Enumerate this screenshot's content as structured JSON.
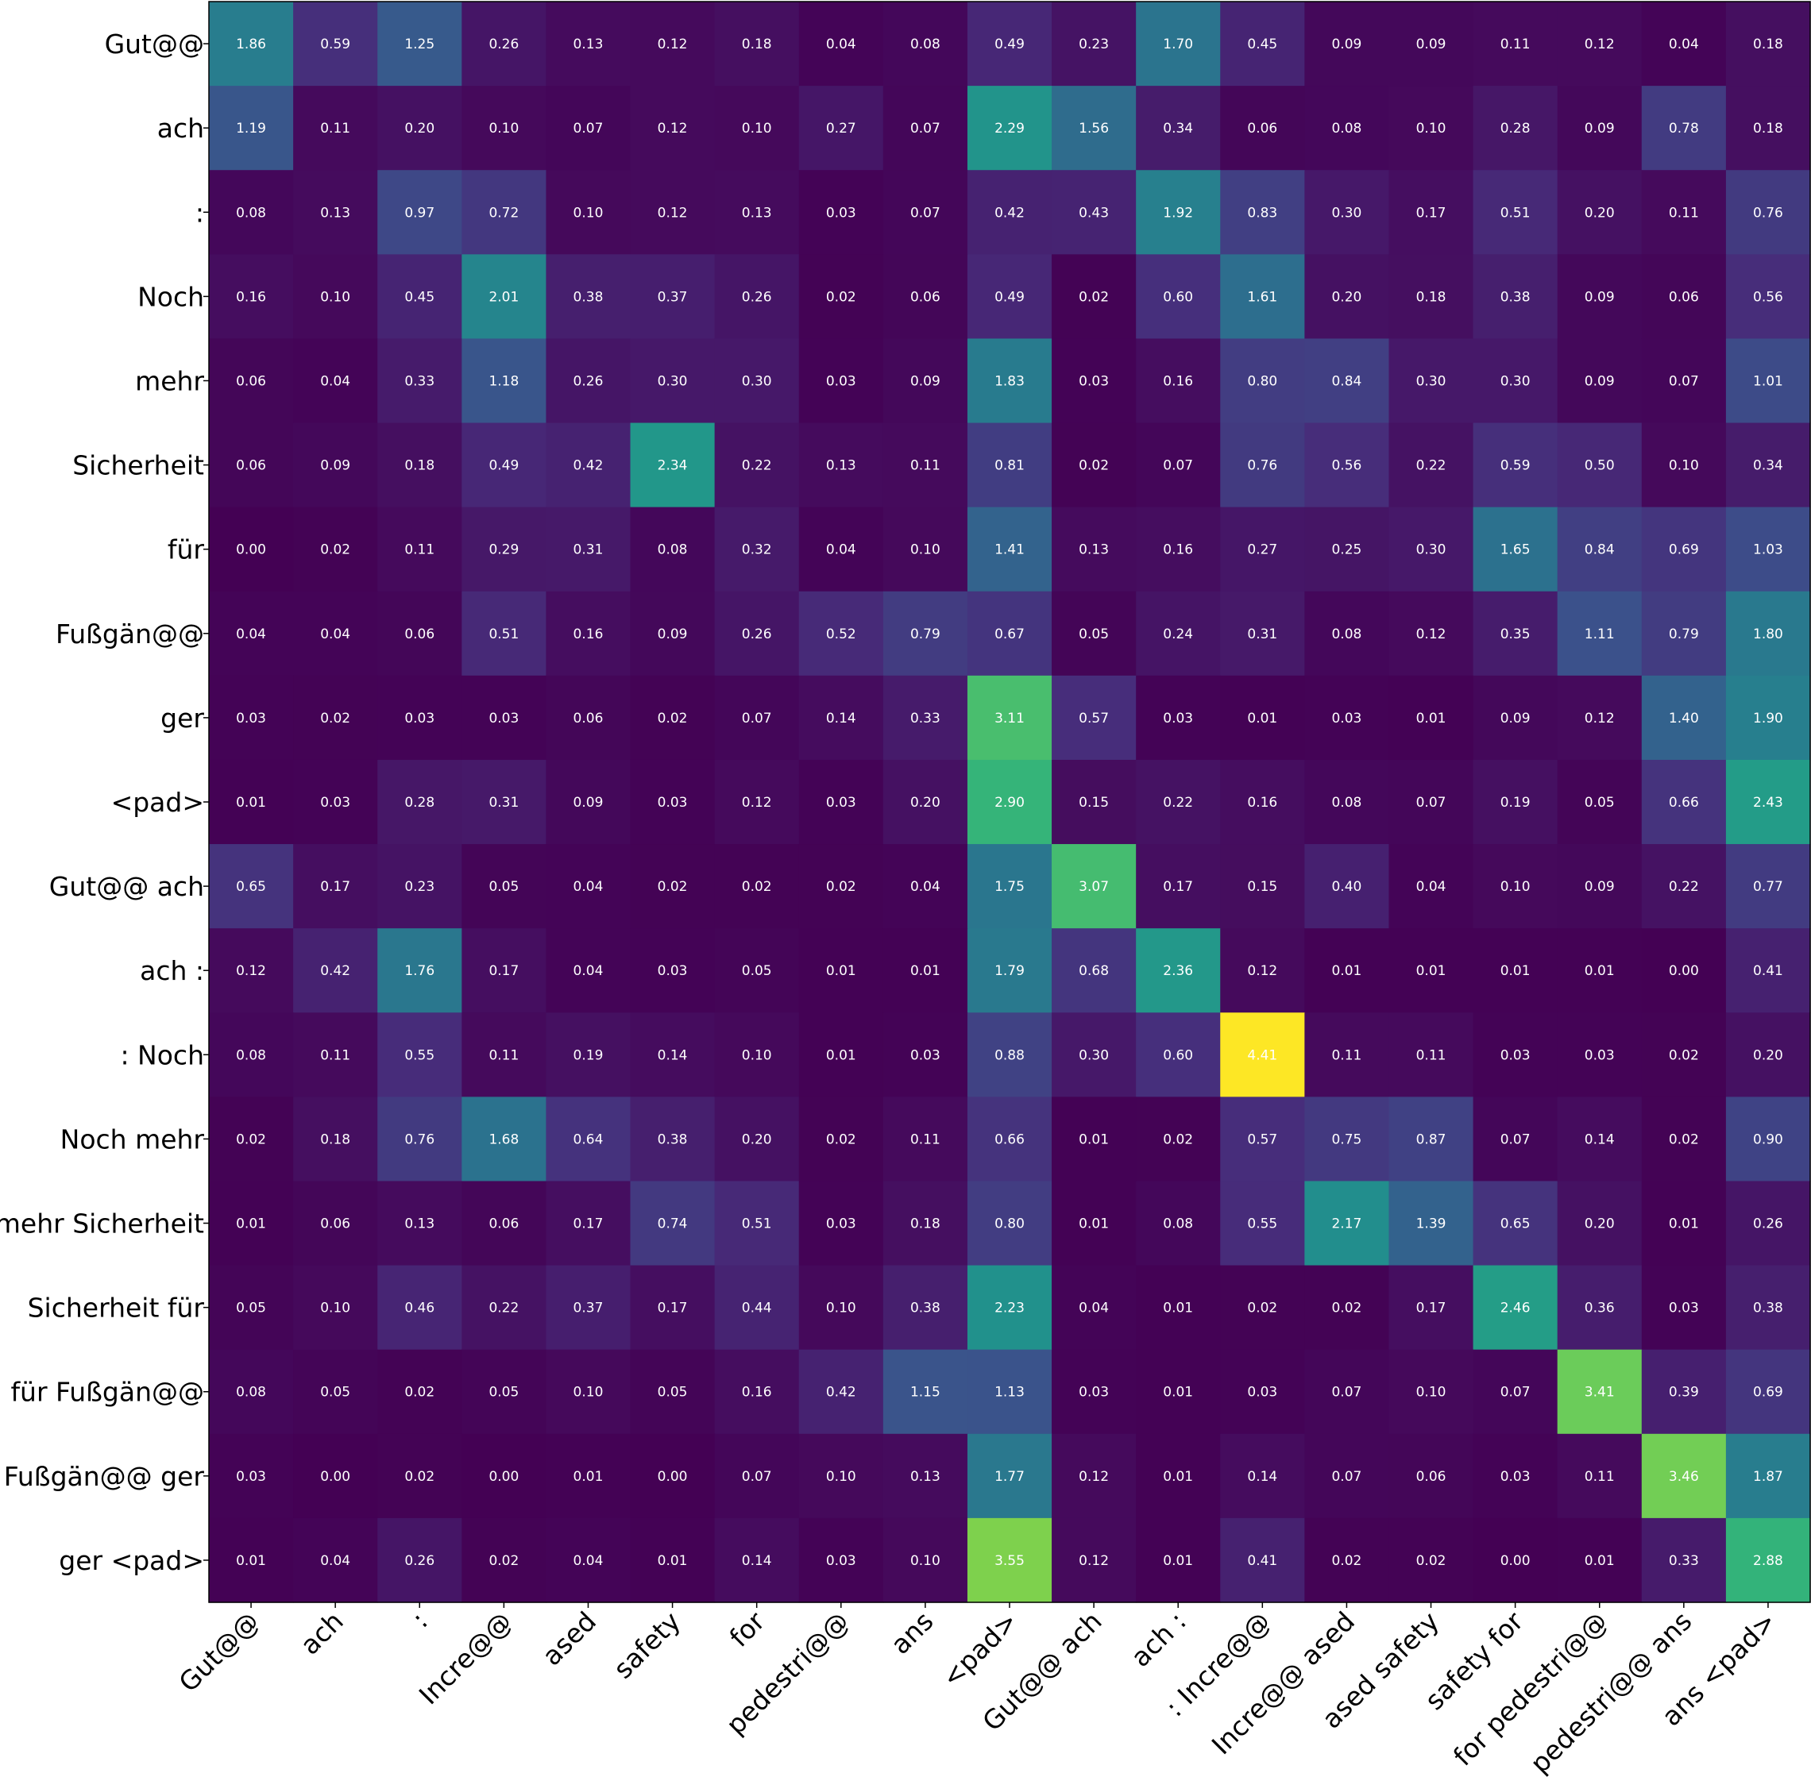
{
  "chart_data": {
    "type": "heatmap",
    "title": "",
    "colormap": "viridis",
    "vmin": 0.0,
    "vmax": 4.41,
    "y_labels": [
      "Gut@@",
      "ach",
      ":",
      "Noch",
      "mehr",
      "Sicherheit",
      "für",
      "Fußgän@@",
      "ger",
      "<pad>",
      "Gut@@ ach",
      "ach :",
      ": Noch",
      "Noch mehr",
      "mehr Sicherheit",
      "Sicherheit für",
      "für Fußgän@@",
      "Fußgän@@ ger",
      "ger <pad>"
    ],
    "x_labels": [
      "Gut@@",
      "ach",
      ":",
      "Incre@@",
      "ased",
      "safety",
      "for",
      "pedestri@@",
      "ans",
      "<pad>",
      "Gut@@ ach",
      "ach :",
      ": Incre@@",
      "Incre@@ ased",
      "ased safety",
      "safety for",
      "for pedestri@@",
      "pedestri@@ ans",
      "ans <pad>"
    ],
    "values": [
      [
        1.86,
        0.59,
        1.25,
        0.26,
        0.13,
        0.12,
        0.18,
        0.04,
        0.08,
        0.49,
        0.23,
        1.7,
        0.45,
        0.09,
        0.09,
        0.11,
        0.12,
        0.04,
        0.18
      ],
      [
        1.19,
        0.11,
        0.2,
        0.1,
        0.07,
        0.12,
        0.1,
        0.27,
        0.07,
        2.29,
        1.56,
        0.34,
        0.06,
        0.08,
        0.1,
        0.28,
        0.09,
        0.78,
        0.18
      ],
      [
        0.08,
        0.13,
        0.97,
        0.72,
        0.1,
        0.12,
        0.13,
        0.03,
        0.07,
        0.42,
        0.43,
        1.92,
        0.83,
        0.3,
        0.17,
        0.51,
        0.2,
        0.11,
        0.76
      ],
      [
        0.16,
        0.1,
        0.45,
        2.01,
        0.38,
        0.37,
        0.26,
        0.02,
        0.06,
        0.49,
        0.02,
        0.6,
        1.61,
        0.2,
        0.18,
        0.38,
        0.09,
        0.06,
        0.56
      ],
      [
        0.06,
        0.04,
        0.33,
        1.18,
        0.26,
        0.3,
        0.3,
        0.03,
        0.09,
        1.83,
        0.03,
        0.16,
        0.8,
        0.84,
        0.3,
        0.3,
        0.09,
        0.07,
        1.01
      ],
      [
        0.06,
        0.09,
        0.18,
        0.49,
        0.42,
        2.34,
        0.22,
        0.13,
        0.11,
        0.81,
        0.02,
        0.07,
        0.76,
        0.56,
        0.22,
        0.59,
        0.5,
        0.1,
        0.34
      ],
      [
        0.0,
        0.02,
        0.11,
        0.29,
        0.31,
        0.08,
        0.32,
        0.04,
        0.1,
        1.41,
        0.13,
        0.16,
        0.27,
        0.25,
        0.3,
        1.65,
        0.84,
        0.69,
        1.03
      ],
      [
        0.04,
        0.04,
        0.06,
        0.51,
        0.16,
        0.09,
        0.26,
        0.52,
        0.79,
        0.67,
        0.05,
        0.24,
        0.31,
        0.08,
        0.12,
        0.35,
        1.11,
        0.79,
        1.8
      ],
      [
        0.03,
        0.02,
        0.03,
        0.03,
        0.06,
        0.02,
        0.07,
        0.14,
        0.33,
        3.11,
        0.57,
        0.03,
        0.01,
        0.03,
        0.01,
        0.09,
        0.12,
        1.4,
        1.9
      ],
      [
        0.01,
        0.03,
        0.28,
        0.31,
        0.09,
        0.03,
        0.12,
        0.03,
        0.2,
        2.9,
        0.15,
        0.22,
        0.16,
        0.08,
        0.07,
        0.19,
        0.05,
        0.66,
        2.43
      ],
      [
        0.65,
        0.17,
        0.23,
        0.05,
        0.04,
        0.02,
        0.02,
        0.02,
        0.04,
        1.75,
        3.07,
        0.17,
        0.15,
        0.4,
        0.04,
        0.1,
        0.09,
        0.22,
        0.77
      ],
      [
        0.12,
        0.42,
        1.76,
        0.17,
        0.04,
        0.03,
        0.05,
        0.01,
        0.01,
        1.79,
        0.68,
        2.36,
        0.12,
        0.01,
        0.01,
        0.01,
        0.01,
        0.0,
        0.41
      ],
      [
        0.08,
        0.11,
        0.55,
        0.11,
        0.19,
        0.14,
        0.1,
        0.01,
        0.03,
        0.88,
        0.3,
        0.6,
        4.41,
        0.11,
        0.11,
        0.03,
        0.03,
        0.02,
        0.2
      ],
      [
        0.02,
        0.18,
        0.76,
        1.68,
        0.64,
        0.38,
        0.2,
        0.02,
        0.11,
        0.66,
        0.01,
        0.02,
        0.57,
        0.75,
        0.87,
        0.07,
        0.14,
        0.02,
        0.9
      ],
      [
        0.01,
        0.06,
        0.13,
        0.06,
        0.17,
        0.74,
        0.51,
        0.03,
        0.18,
        0.8,
        0.01,
        0.08,
        0.55,
        2.17,
        1.39,
        0.65,
        0.2,
        0.01,
        0.26
      ],
      [
        0.05,
        0.1,
        0.46,
        0.22,
        0.37,
        0.17,
        0.44,
        0.1,
        0.38,
        2.23,
        0.04,
        0.01,
        0.02,
        0.02,
        0.17,
        2.46,
        0.36,
        0.03,
        0.38
      ],
      [
        0.08,
        0.05,
        0.02,
        0.05,
        0.1,
        0.05,
        0.16,
        0.42,
        1.15,
        1.13,
        0.03,
        0.01,
        0.03,
        0.07,
        0.1,
        0.07,
        3.41,
        0.39,
        0.69
      ],
      [
        0.03,
        0.0,
        0.02,
        0.0,
        0.01,
        0.0,
        0.07,
        0.1,
        0.13,
        1.77,
        0.12,
        0.01,
        0.14,
        0.07,
        0.06,
        0.03,
        0.11,
        3.46,
        1.87
      ],
      [
        0.01,
        0.04,
        0.26,
        0.02,
        0.04,
        0.01,
        0.14,
        0.03,
        0.1,
        3.55,
        0.12,
        0.01,
        0.41,
        0.02,
        0.02,
        0.0,
        0.01,
        0.33,
        2.88
      ]
    ]
  }
}
